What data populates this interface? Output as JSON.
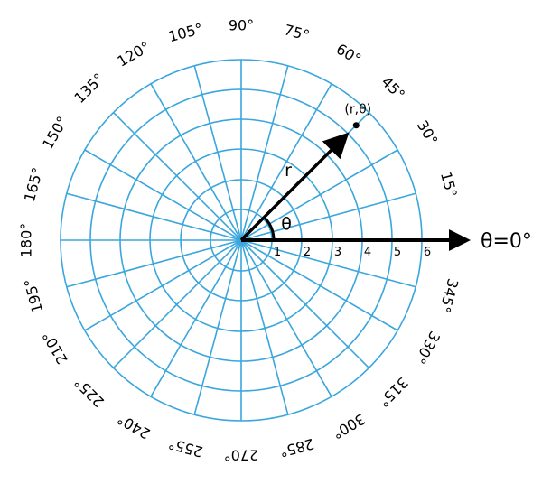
{
  "grid": {
    "line_color": "#3aa6dd",
    "angle_step_deg": 15,
    "ring_values": [
      1,
      2,
      3,
      4,
      5,
      6
    ]
  },
  "angle_labels": [
    "0°",
    "15°",
    "30°",
    "45°",
    "60°",
    "75°",
    "90°",
    "105°",
    "120°",
    "135°",
    "150°",
    "165°",
    "180°",
    "195°",
    "210°",
    "225°",
    "240°",
    "255°",
    "270°",
    "285°",
    "300°",
    "315°",
    "330°",
    "345°"
  ],
  "radial_labels": [
    "1",
    "2",
    "3",
    "4",
    "5",
    "6"
  ],
  "point": {
    "label": "(r,θ)",
    "r": 5.4,
    "theta_deg": 45
  },
  "symbols": {
    "r": "r",
    "theta": "θ"
  },
  "axis_label": "θ=0°",
  "colors": {
    "grid": "#3aa6dd",
    "ink": "#000000"
  }
}
